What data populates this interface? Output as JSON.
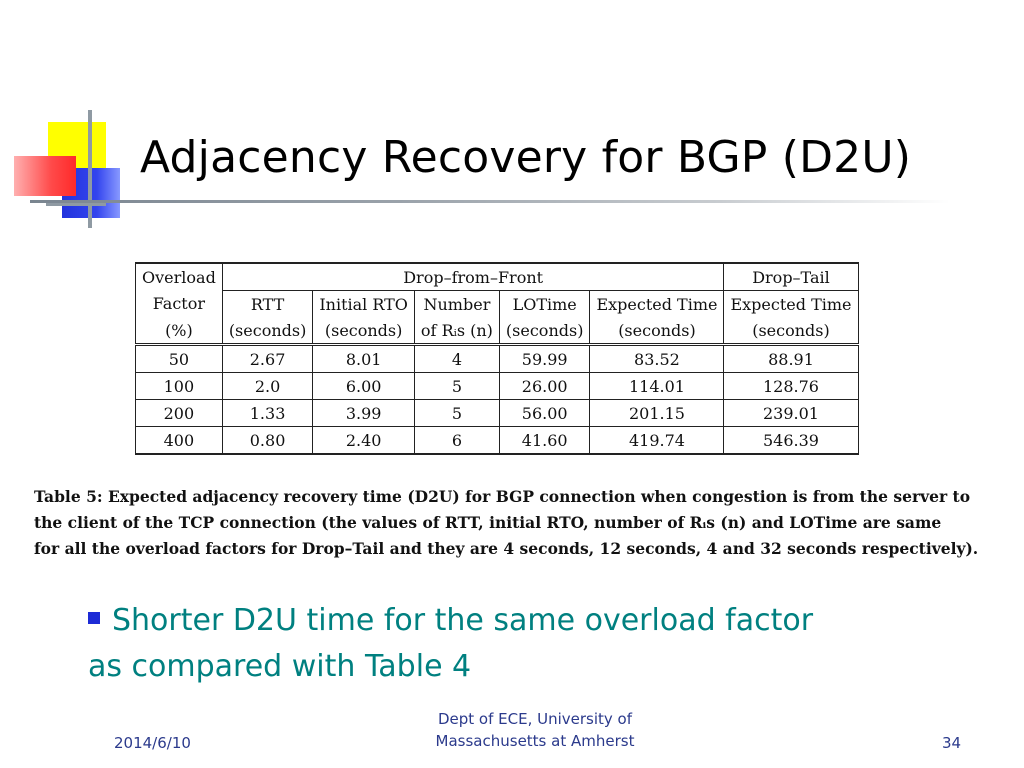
{
  "slide": {
    "title": "Adjacency Recovery for BGP (D2U)",
    "table": {
      "group_headers": {
        "first": "Overload",
        "drop_from_front": "Drop–from–Front",
        "drop_tail": "Drop–Tail"
      },
      "subheaders_row1": [
        "Factor",
        "RTT",
        "Initial RTO",
        "Number",
        "LOTime",
        "Expected Time",
        "Expected Time"
      ],
      "subheaders_row2": [
        "(%)",
        "(seconds)",
        "(seconds)",
        "of Rᵢs (n)",
        "(seconds)",
        "(seconds)",
        "(seconds)"
      ],
      "rows": [
        [
          "50",
          "2.67",
          "8.01",
          "4",
          "59.99",
          "83.52",
          "88.91"
        ],
        [
          "100",
          "2.0",
          "6.00",
          "5",
          "26.00",
          "114.01",
          "128.76"
        ],
        [
          "200",
          "1.33",
          "3.99",
          "5",
          "56.00",
          "201.15",
          "239.01"
        ],
        [
          "400",
          "0.80",
          "2.40",
          "6",
          "41.60",
          "419.74",
          "546.39"
        ]
      ]
    },
    "caption_lines": [
      "Table 5: Expected adjacency recovery time (D2U) for BGP connection when congestion is from the server to",
      "the client of the TCP connection (the values of RTT, initial RTO, number of Rᵢs (n) and LOTime are same",
      "for all the overload factors for Drop–Tail and they are 4 seconds, 12 seconds, 4 and 32 seconds respectively)."
    ],
    "bullet": {
      "line1": "Shorter D2U time for the same overload factor",
      "line2": "as compared with Table 4"
    }
  },
  "footer": {
    "date": "2014/6/10",
    "org_line1": "Dept of ECE, University of",
    "org_line2": "Massachusetts at Amherst",
    "page": "34"
  },
  "colors": {
    "bullet_text": "#008080",
    "bullet_marker": "#1d2bd6",
    "footer_text": "#2b3a8c"
  }
}
